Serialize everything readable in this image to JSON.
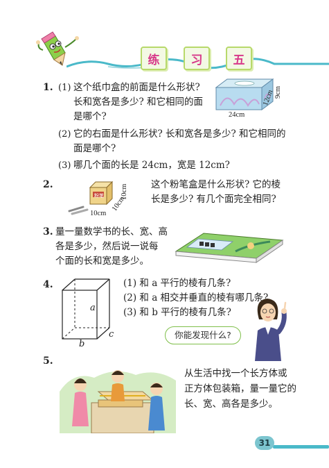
{
  "header": {
    "title_chars": [
      "练",
      "习",
      "五"
    ]
  },
  "q1": {
    "number": "1.",
    "p1_label": "(1)",
    "p1_line1": "这个纸巾盒的前面是什么形状?",
    "p1_line2": "长和宽各是多少? 和它相同的面",
    "p1_line3": "是哪个?",
    "p2_label": "(2)",
    "p2_line1": "它的右面是什么形状? 长和宽各是多少? 和它相同的",
    "p2_line2": "面是哪个?",
    "p3_label": "(3)",
    "p3_line1": "哪几个面的长是 24cm，宽是 12cm?",
    "dim_length": "24cm",
    "dim_width": "12cm",
    "dim_height": "9cm"
  },
  "q2": {
    "number": "2.",
    "line1": "这个粉笔盒是什么形状? 它的棱",
    "line2": "长是多少? 有几个面完全相同?",
    "dim_a": "10cm",
    "dim_b": "10cm",
    "dim_c": "10cm",
    "box_label": "粉笔"
  },
  "q3": {
    "number": "3.",
    "line1": "量一量数学书的长、宽、高",
    "line2": "各是多少，然后说一说每",
    "line3": "个面的长和宽是多少。"
  },
  "q4": {
    "number": "4.",
    "p1": "(1)  和 a 平行的棱有几条?",
    "p2": "(2)  和 a 相交并垂直的棱有哪几条?",
    "p3": "(3)  和 b 平行的棱有几条?",
    "edge_a": "a",
    "edge_b": "b",
    "edge_c": "c",
    "bubble": "你能发现什么?"
  },
  "q5": {
    "number": "5.",
    "line1": "从生活中找一个长方体或",
    "line2": "正方体包装箱，量一量它的",
    "line3": "长、宽、高各是多少。"
  },
  "page_number": "31",
  "colors": {
    "title_pink": "#d7398a",
    "box_green": "#b7d96a",
    "page_teal": "#4ab9c9"
  }
}
